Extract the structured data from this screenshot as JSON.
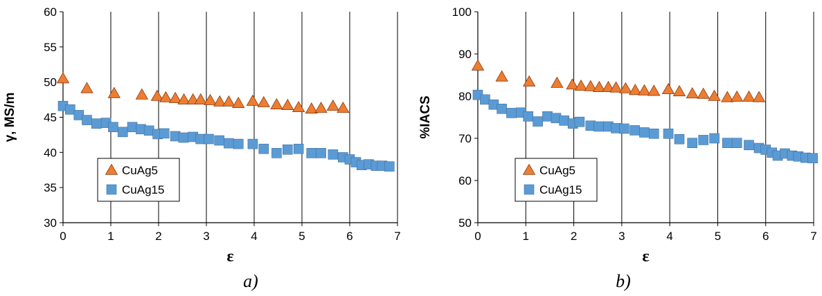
{
  "chart_data": [
    {
      "type": "scatter",
      "caption": "a)",
      "xlabel": "ε",
      "ylabel": "γ, MS/m",
      "xlim": [
        0,
        7
      ],
      "ylim": [
        30,
        60
      ],
      "xticks": [
        "0",
        "1",
        "2",
        "3",
        "4",
        "5",
        "6",
        "7"
      ],
      "yticks": [
        "30",
        "35",
        "40",
        "45",
        "50",
        "55",
        "60"
      ],
      "grid": "vertical",
      "legend_position": "lower-left",
      "series": [
        {
          "name": "CuAg5",
          "marker": "triangle",
          "color": "#ED7D31",
          "x": [
            0.0,
            0.5,
            1.07,
            1.65,
            1.97,
            2.15,
            2.35,
            2.53,
            2.72,
            2.88,
            3.08,
            3.28,
            3.47,
            3.67,
            3.97,
            4.2,
            4.47,
            4.7,
            4.93,
            5.2,
            5.4,
            5.65,
            5.86
          ],
          "y": [
            50.5,
            49.1,
            48.4,
            48.2,
            48.0,
            47.8,
            47.7,
            47.5,
            47.5,
            47.5,
            47.4,
            47.2,
            47.2,
            47.0,
            47.3,
            47.1,
            46.8,
            46.7,
            46.4,
            46.2,
            46.3,
            46.6,
            46.3
          ]
        },
        {
          "name": "CuAg15",
          "marker": "square",
          "color": "#5B9BD5",
          "x": [
            0.0,
            0.15,
            0.33,
            0.5,
            0.7,
            0.9,
            1.05,
            1.25,
            1.45,
            1.63,
            1.8,
            1.98,
            2.12,
            2.35,
            2.52,
            2.72,
            2.88,
            3.05,
            3.27,
            3.47,
            3.67,
            3.97,
            4.2,
            4.47,
            4.7,
            4.93,
            5.2,
            5.4,
            5.65,
            5.86,
            6.0,
            6.13,
            6.25,
            6.4,
            6.55,
            6.68,
            6.83
          ],
          "y": [
            46.6,
            46.1,
            45.3,
            44.6,
            44.1,
            44.2,
            43.6,
            42.9,
            43.6,
            43.3,
            43.1,
            42.6,
            42.7,
            42.3,
            42.1,
            42.2,
            41.9,
            41.9,
            41.7,
            41.3,
            41.2,
            41.2,
            40.5,
            39.9,
            40.4,
            40.5,
            39.9,
            39.9,
            39.7,
            39.3,
            39.0,
            38.6,
            38.2,
            38.3,
            38.1,
            38.1,
            38.0
          ]
        }
      ]
    },
    {
      "type": "scatter",
      "caption": "b)",
      "xlabel": "ε",
      "ylabel": "%IACS",
      "xlim": [
        0,
        7
      ],
      "ylim": [
        50,
        100
      ],
      "xticks": [
        "0",
        "1",
        "2",
        "3",
        "4",
        "5",
        "6",
        "7"
      ],
      "yticks": [
        "50",
        "60",
        "70",
        "80",
        "90",
        "100"
      ],
      "grid": "vertical",
      "legend_position": "lower-left",
      "series": [
        {
          "name": "CuAg5",
          "marker": "triangle",
          "color": "#ED7D31",
          "x": [
            0.0,
            0.5,
            1.07,
            1.65,
            1.97,
            2.15,
            2.35,
            2.53,
            2.72,
            2.88,
            3.08,
            3.28,
            3.47,
            3.67,
            3.97,
            4.2,
            4.47,
            4.7,
            4.93,
            5.2,
            5.4,
            5.65,
            5.86
          ],
          "y": [
            87.2,
            84.6,
            83.4,
            83.1,
            82.7,
            82.4,
            82.3,
            82.1,
            82.1,
            82.0,
            81.8,
            81.4,
            81.3,
            81.2,
            81.6,
            81.1,
            80.6,
            80.5,
            80.0,
            79.7,
            79.8,
            79.8,
            79.7
          ]
        },
        {
          "name": "CuAg15",
          "marker": "square",
          "color": "#5B9BD5",
          "x": [
            0.0,
            0.15,
            0.33,
            0.5,
            0.7,
            0.9,
            1.05,
            1.25,
            1.45,
            1.63,
            1.8,
            1.98,
            2.12,
            2.35,
            2.52,
            2.72,
            2.88,
            3.05,
            3.27,
            3.47,
            3.67,
            3.97,
            4.2,
            4.47,
            4.7,
            4.93,
            5.2,
            5.4,
            5.65,
            5.86,
            6.0,
            6.13,
            6.25,
            6.4,
            6.55,
            6.68,
            6.83,
            6.98
          ],
          "y": [
            80.3,
            79.2,
            78.0,
            77.0,
            76.0,
            76.1,
            75.2,
            74.0,
            75.2,
            74.8,
            74.2,
            73.5,
            73.9,
            73.0,
            72.8,
            72.8,
            72.4,
            72.3,
            71.9,
            71.4,
            71.1,
            71.1,
            69.8,
            68.9,
            69.6,
            70.0,
            68.9,
            68.9,
            68.4,
            67.7,
            67.3,
            66.6,
            65.9,
            66.4,
            65.9,
            65.7,
            65.4,
            65.3
          ]
        }
      ]
    }
  ]
}
